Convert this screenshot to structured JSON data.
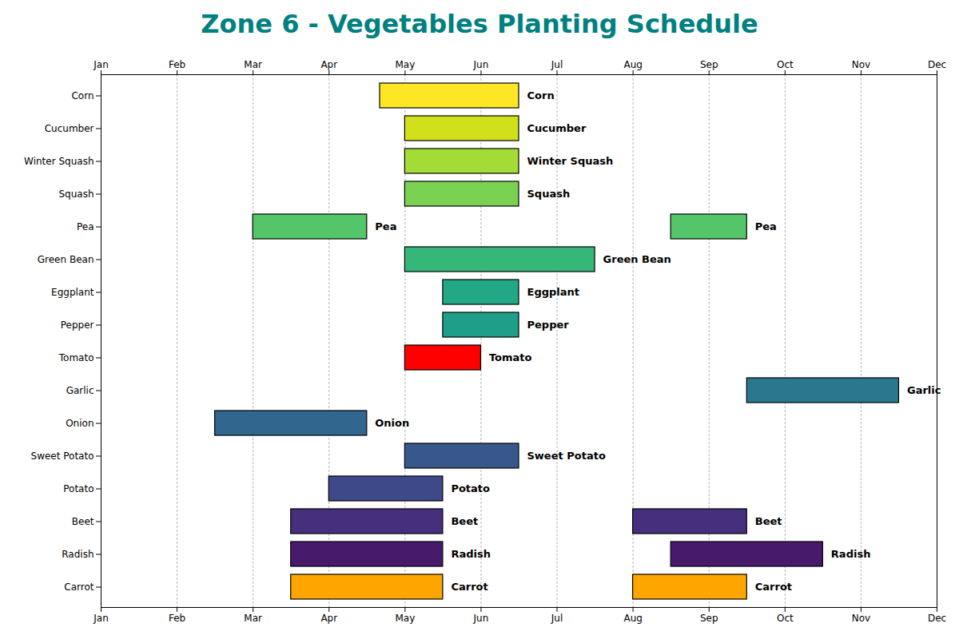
{
  "chart_data": {
    "type": "gantt",
    "title": "Zone 6 - Vegetables Planting Schedule",
    "orientation": "horizontal",
    "grid": true,
    "xlim": [
      0,
      11
    ],
    "xticks": [
      {
        "value": 0,
        "label": "Jan"
      },
      {
        "value": 1,
        "label": "Feb"
      },
      {
        "value": 2,
        "label": "Mar"
      },
      {
        "value": 3,
        "label": "Apr"
      },
      {
        "value": 4,
        "label": "May"
      },
      {
        "value": 5,
        "label": "Jun"
      },
      {
        "value": 6,
        "label": "Jul"
      },
      {
        "value": 7,
        "label": "Aug"
      },
      {
        "value": 8,
        "label": "Sep"
      },
      {
        "value": 9,
        "label": "Oct"
      },
      {
        "value": 10,
        "label": "Nov"
      },
      {
        "value": 11,
        "label": "Dec"
      }
    ],
    "series": [
      {
        "name": "Corn",
        "color": "#fde725",
        "values": [
          [
            3.67,
            5.5
          ]
        ]
      },
      {
        "name": "Cucumber",
        "color": "#d0e11c",
        "values": [
          [
            4.0,
            5.5
          ]
        ]
      },
      {
        "name": "Winter Squash",
        "color": "#a5db36",
        "values": [
          [
            4.0,
            5.5
          ]
        ]
      },
      {
        "name": "Squash",
        "color": "#7ad151",
        "values": [
          [
            4.0,
            5.5
          ]
        ]
      },
      {
        "name": "Pea",
        "color": "#54c568",
        "values": [
          [
            2.0,
            3.5
          ],
          [
            7.5,
            8.5
          ]
        ]
      },
      {
        "name": "Green Bean",
        "color": "#35b779",
        "values": [
          [
            4.0,
            6.5
          ]
        ]
      },
      {
        "name": "Eggplant",
        "color": "#22a884",
        "values": [
          [
            4.5,
            5.5
          ]
        ]
      },
      {
        "name": "Pepper",
        "color": "#1f9e89",
        "values": [
          [
            4.5,
            5.5
          ]
        ]
      },
      {
        "name": "Tomato",
        "color": "#ff0000",
        "values": [
          [
            4.0,
            5.0
          ]
        ]
      },
      {
        "name": "Garlic",
        "color": "#2a788e",
        "values": [
          [
            8.5,
            10.5
          ]
        ]
      },
      {
        "name": "Onion",
        "color": "#31668e",
        "values": [
          [
            1.5,
            3.5
          ]
        ]
      },
      {
        "name": "Sweet Potato",
        "color": "#38588c",
        "values": [
          [
            4.0,
            5.5
          ]
        ]
      },
      {
        "name": "Potato",
        "color": "#3e4989",
        "values": [
          [
            3.0,
            4.5
          ]
        ]
      },
      {
        "name": "Beet",
        "color": "#46307e",
        "values": [
          [
            2.5,
            4.5
          ],
          [
            7.0,
            8.5
          ]
        ]
      },
      {
        "name": "Radish",
        "color": "#481a6c",
        "values": [
          [
            2.5,
            4.5
          ],
          [
            7.5,
            9.5
          ]
        ]
      },
      {
        "name": "Carrot",
        "color": "#ffa500",
        "values": [
          [
            2.5,
            4.5
          ],
          [
            7.0,
            8.5
          ]
        ]
      }
    ]
  }
}
